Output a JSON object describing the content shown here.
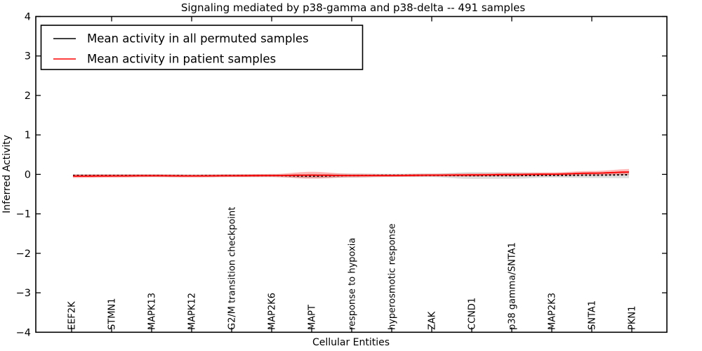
{
  "title": "Signaling mediated by p38-gamma and p38-delta -- 491 samples",
  "legend": {
    "items": [
      {
        "label": "Mean activity in all permuted samples",
        "color": "#000000"
      },
      {
        "label": "Mean activity in patient samples",
        "color": "#ff0000"
      }
    ],
    "position": "upper left"
  },
  "axes": {
    "xlabel": "Cellular Entities",
    "ylabel": "Inferred Activity",
    "ytick_labels": [
      "4",
      "3",
      "2",
      "1",
      "0",
      "−1",
      "−2",
      "−3",
      "−4"
    ],
    "ytick_values": [
      4,
      3,
      2,
      1,
      0,
      -1,
      -2,
      -3,
      -4
    ],
    "ylim": [
      -4,
      4
    ],
    "grid": false
  },
  "chart_data": {
    "type": "line",
    "categories": [
      "EEF2K",
      "STMN1",
      "MAPK13",
      "MAPK12",
      "G2/M transition checkpoint",
      "MAP2K6",
      "MAPT",
      "response to hypoxia",
      "hyperosmotic response",
      "ZAK",
      "CCND1",
      "p38 gamma/SNTA1",
      "MAP2K3",
      "SNTA1",
      "PKN1"
    ],
    "ylim": [
      -4,
      4
    ],
    "series": [
      {
        "name": "Mean activity in all permuted samples",
        "color": "#000000",
        "style": "dashed",
        "values": [
          -0.03,
          -0.03,
          -0.03,
          -0.035,
          -0.03,
          -0.03,
          -0.045,
          -0.03,
          -0.025,
          -0.025,
          -0.03,
          -0.03,
          -0.025,
          -0.02,
          -0.01
        ]
      },
      {
        "name": "Mean activity in patient samples",
        "color": "#ff0000",
        "style": "solid",
        "values": [
          -0.045,
          -0.04,
          -0.035,
          -0.04,
          -0.035,
          -0.03,
          -0.02,
          -0.03,
          -0.03,
          -0.02,
          -0.015,
          -0.005,
          0.005,
          0.03,
          0.06
        ]
      }
    ],
    "bands": [
      {
        "name": "permuted-samples-range",
        "color": "rgba(120,120,120,0.25)",
        "center_series": 0,
        "half_widths": [
          0.035,
          0.035,
          0.035,
          0.035,
          0.035,
          0.035,
          0.055,
          0.05,
          0.04,
          0.045,
          0.085,
          0.08,
          0.055,
          0.07,
          0.085
        ]
      },
      {
        "name": "patient-samples-range",
        "color": "rgba(255,0,0,0.28)",
        "center_series": 1,
        "half_widths": [
          0.045,
          0.04,
          0.035,
          0.035,
          0.035,
          0.04,
          0.085,
          0.045,
          0.035,
          0.035,
          0.04,
          0.045,
          0.045,
          0.055,
          0.075
        ]
      }
    ],
    "top_tick_category_indices": [
      1,
      3,
      5,
      7,
      9,
      11,
      13
    ],
    "legend_position": "upper left",
    "grid": false
  }
}
